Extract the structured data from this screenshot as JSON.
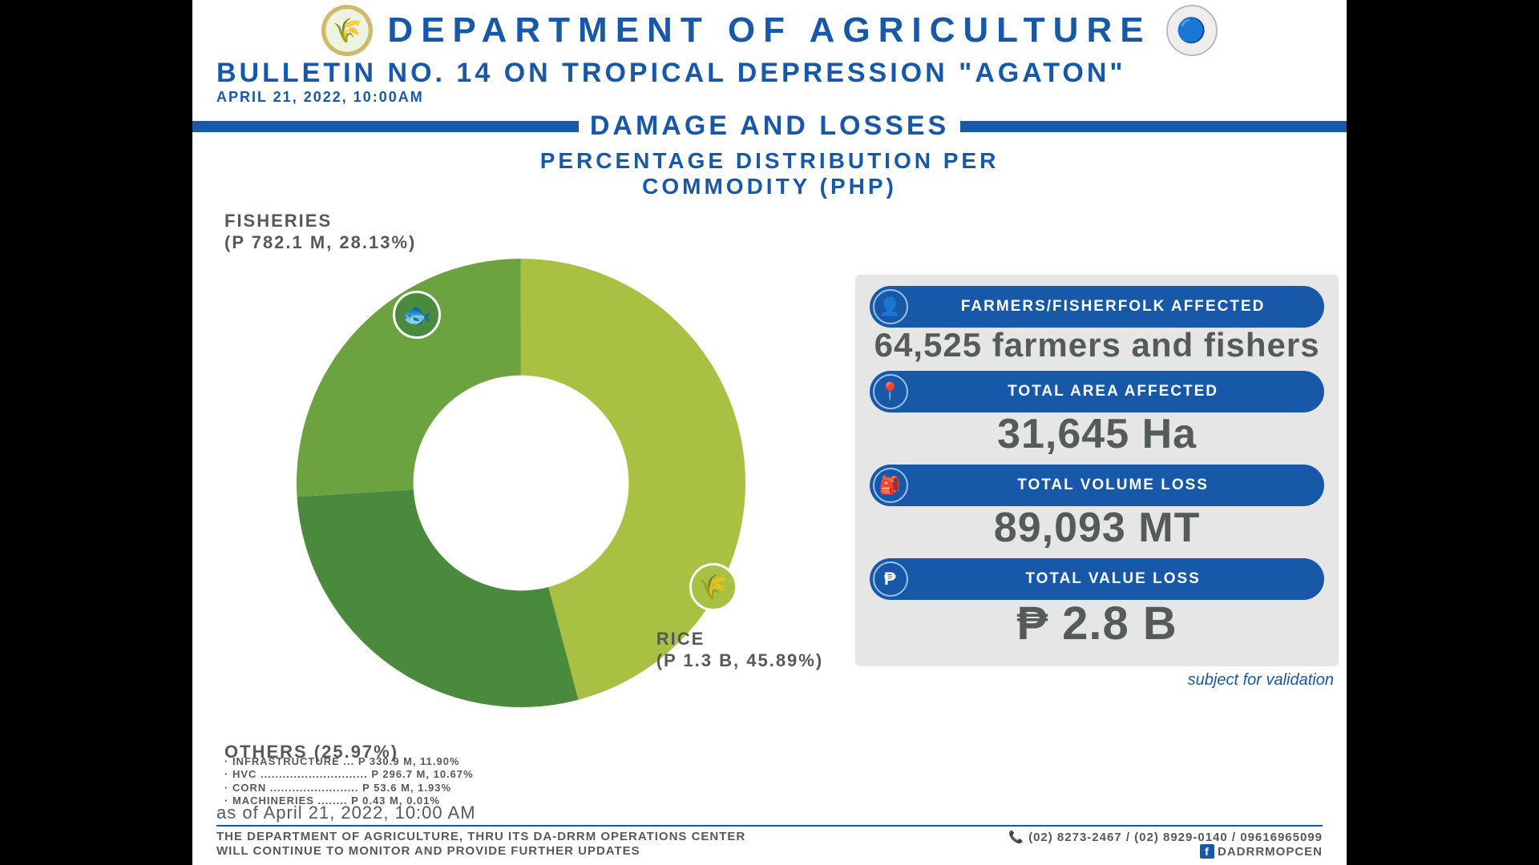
{
  "header": {
    "department": "DEPARTMENT OF AGRICULTURE",
    "bulletin": "BULLETIN NO. 14 ON TROPICAL DEPRESSION \"AGATON\"",
    "datetime": "APRIL 21, 2022, 10:00AM",
    "section": "DAMAGE AND LOSSES",
    "subhead_l1": "PERCENTAGE DISTRIBUTION PER",
    "subhead_l2": "COMMODITY (PHP)"
  },
  "colors": {
    "brand_blue": "#1858a8",
    "gray_text": "#55595a",
    "panel_bg": "#e6e6e6",
    "white": "#ffffff"
  },
  "chart": {
    "type": "donut",
    "inner_radius_pct": 48,
    "outer_radius": 280,
    "background": "#ffffff",
    "segments": [
      {
        "name": "RICE",
        "value_label": "(P 1.3 B, 45.89%)",
        "percent": 45.89,
        "color": "#a9c143"
      },
      {
        "name": "FISHERIES",
        "value_label": "(P 782.1 M, 28.13%)",
        "percent": 28.13,
        "color": "#4a8a3c"
      },
      {
        "name": "OTHERS",
        "value_label": "(25.97%)",
        "percent": 25.97,
        "color": "#6ca23f"
      }
    ],
    "rice_subtitle": "RICE",
    "fisheries_title": "FISHERIES",
    "others_title": "OTHERS (25.97%)",
    "others_rows": [
      "·  INFRASTRUCTURE ... P 330.9 M, 11.90%",
      "·  HVC ............................. P 296.7 M, 10.67%",
      "·  CORN ........................ P 53.6 M, 1.93%",
      "·  MACHINERIES ........ P 0.43 M, 0.01%"
    ],
    "fish_icon_bg": "#4a8a3c",
    "rice_icon_bg": "#a9c143"
  },
  "stats": {
    "items": [
      {
        "icon": "farmer-icon",
        "glyph": "👤",
        "label": "FARMERS/FISHERFOLK AFFECTED",
        "value": "64,525 farmers and fishers",
        "value_fontsize": 42
      },
      {
        "icon": "area-icon",
        "glyph": "📍",
        "label": "TOTAL AREA AFFECTED",
        "value": "31,645 Ha",
        "value_fontsize": 52
      },
      {
        "icon": "sack-icon",
        "glyph": "🎒",
        "label": "TOTAL VOLUME LOSS",
        "value": "89,093 MT",
        "value_fontsize": 52
      },
      {
        "icon": "peso-icon",
        "glyph": "₱",
        "label": "TOTAL VALUE LOSS",
        "value": "₱ 2.8 B",
        "value_fontsize": 58
      }
    ],
    "note": "subject for validation"
  },
  "footer": {
    "asof": "as of April 21, 2022, 10:00 AM",
    "line1": "THE DEPARTMENT OF AGRICULTURE, THRU ITS DA-DRRM OPERATIONS CENTER",
    "line2": "WILL CONTINUE TO MONITOR AND PROVIDE FURTHER UPDATES",
    "phones": "(02) 8273-2467 / (02) 8929-0140 / 09616965099",
    "fb": "DADRRMOPCEN"
  }
}
